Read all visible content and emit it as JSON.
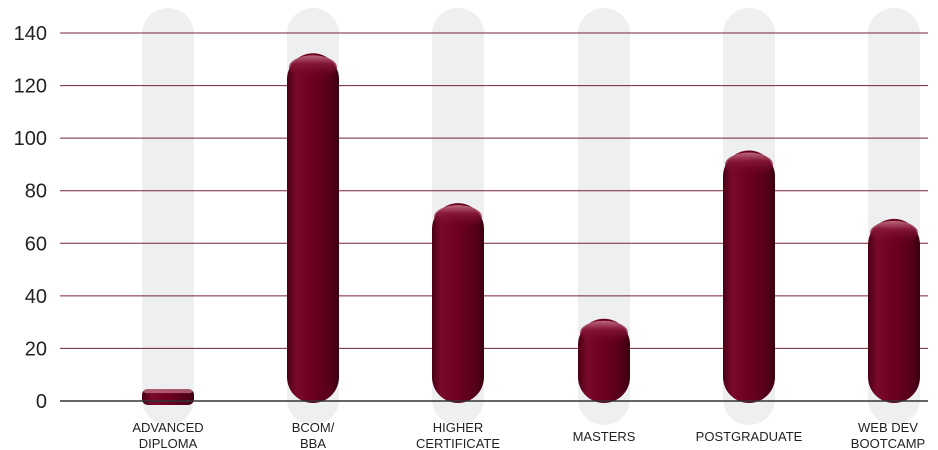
{
  "chart_data": {
    "type": "bar",
    "title": "",
    "xlabel": "",
    "ylabel": "",
    "categories": [
      [
        "ADVANCED",
        "DIPLOMA"
      ],
      [
        "BCOM/",
        "BBA"
      ],
      [
        "HIGHER",
        "CERTIFICATE"
      ],
      [
        "MASTERS"
      ],
      [
        "POSTGRADUATE"
      ],
      [
        "WEB DEV",
        "BOOTCAMP"
      ]
    ],
    "values": [
      3,
      130,
      73,
      29,
      93,
      67
    ],
    "ylim": [
      0,
      140
    ],
    "yticks": [
      "0",
      "20",
      "40",
      "60",
      "80",
      "100",
      "120",
      "140"
    ],
    "grid": true,
    "colors": {
      "bar": "#6e0020",
      "track": "#eeeff1",
      "grid": "#7a2038",
      "axis": "#333333"
    }
  }
}
